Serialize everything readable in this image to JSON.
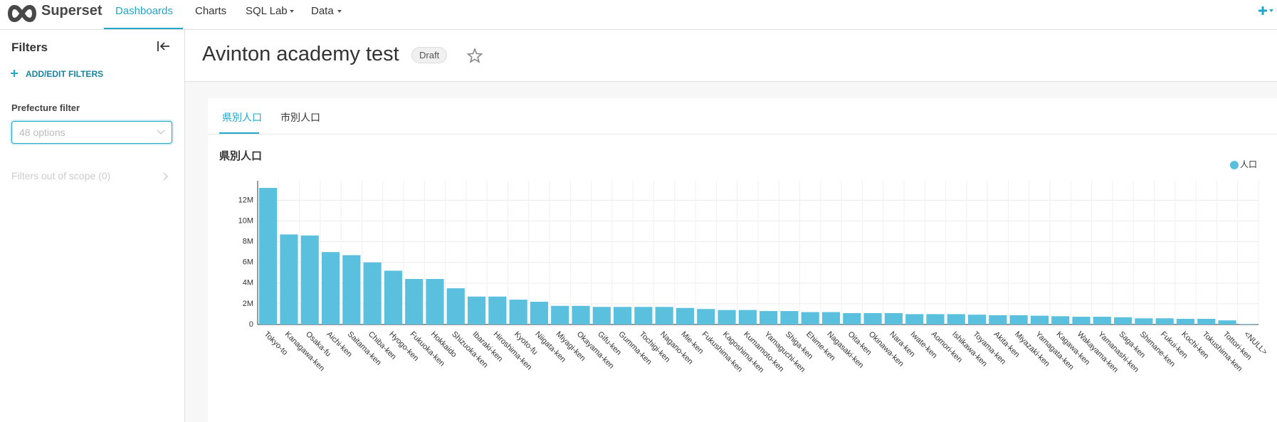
{
  "nav": {
    "brand": "Superset",
    "items": [
      "Dashboards",
      "Charts",
      "SQL Lab",
      "Data"
    ]
  },
  "sidebar": {
    "title": "Filters",
    "add_button": "ADD/EDIT FILTERS",
    "filter_label": "Prefecture filter",
    "filter_placeholder": "48 options",
    "out_of_scope": "Filters out of scope (0)"
  },
  "header": {
    "title": "Avinton academy test",
    "status": "Draft"
  },
  "tabs": [
    "県別人口",
    "市別人口"
  ],
  "chart_data": {
    "type": "bar",
    "title": "県別人口",
    "categories": [
      "Tokyo-to",
      "Kanagawa-ken",
      "Osaka-fu",
      "Aichi-ken",
      "Saitama-ken",
      "Chiba-ken",
      "Hyogo-ken",
      "Fukuoka-ken",
      "Hokkaido",
      "Shizuoka-ken",
      "Ibaraki-ken",
      "Hiroshima-ken",
      "Kyoto-fu",
      "Niigata-ken",
      "Miyagi-ken",
      "Okayama-ken",
      "Gifu-ken",
      "Gumma-ken",
      "Tochigi-ken",
      "Nagano-ken",
      "Mie-ken",
      "Fukushima-ken",
      "Kagoshima-ken",
      "Kumamoto-ken",
      "Yamaguchi-ken",
      "Shiga-ken",
      "Ehime-ken",
      "Nagasaki-ken",
      "Oita-ken",
      "Okinawa-ken",
      "Nara-ken",
      "Iwate-ken",
      "Aomori-ken",
      "Ishikawa-ken",
      "Toyama-ken",
      "Akita-ken",
      "Miyazaki-ken",
      "Yamagata-ken",
      "Kagawa-ken",
      "Wakayama-ken",
      "Yamanashi-ken",
      "Saga-ken",
      "Shimane-ken",
      "Fukui-ken",
      "Kochi-ken",
      "Tokushima-ken",
      "Tottori-ken",
      "<NULL>"
    ],
    "series": [
      {
        "name": "人口",
        "color": "#5bc0de",
        "values": [
          13200000,
          8700000,
          8600000,
          7000000,
          6700000,
          6000000,
          5200000,
          4400000,
          4400000,
          3500000,
          2700000,
          2700000,
          2400000,
          2200000,
          1800000,
          1800000,
          1700000,
          1700000,
          1700000,
          1700000,
          1600000,
          1500000,
          1400000,
          1400000,
          1300000,
          1300000,
          1200000,
          1200000,
          1100000,
          1100000,
          1100000,
          1000000,
          1000000,
          1000000,
          950000,
          900000,
          900000,
          850000,
          800000,
          750000,
          750000,
          700000,
          600000,
          600000,
          550000,
          550000,
          400000,
          50000
        ]
      }
    ],
    "ylim": [
      0,
      13200000
    ],
    "yticks": [
      0,
      {
        "value": 2000000,
        "label": "2M"
      },
      {
        "value": 4000000,
        "label": "4M"
      },
      {
        "value": 6000000,
        "label": "6M"
      },
      {
        "value": 8000000,
        "label": "8M"
      },
      {
        "value": 10000000,
        "label": "10M"
      },
      {
        "value": 12000000,
        "label": "12M"
      }
    ],
    "grid": true,
    "legend": "top-right"
  }
}
